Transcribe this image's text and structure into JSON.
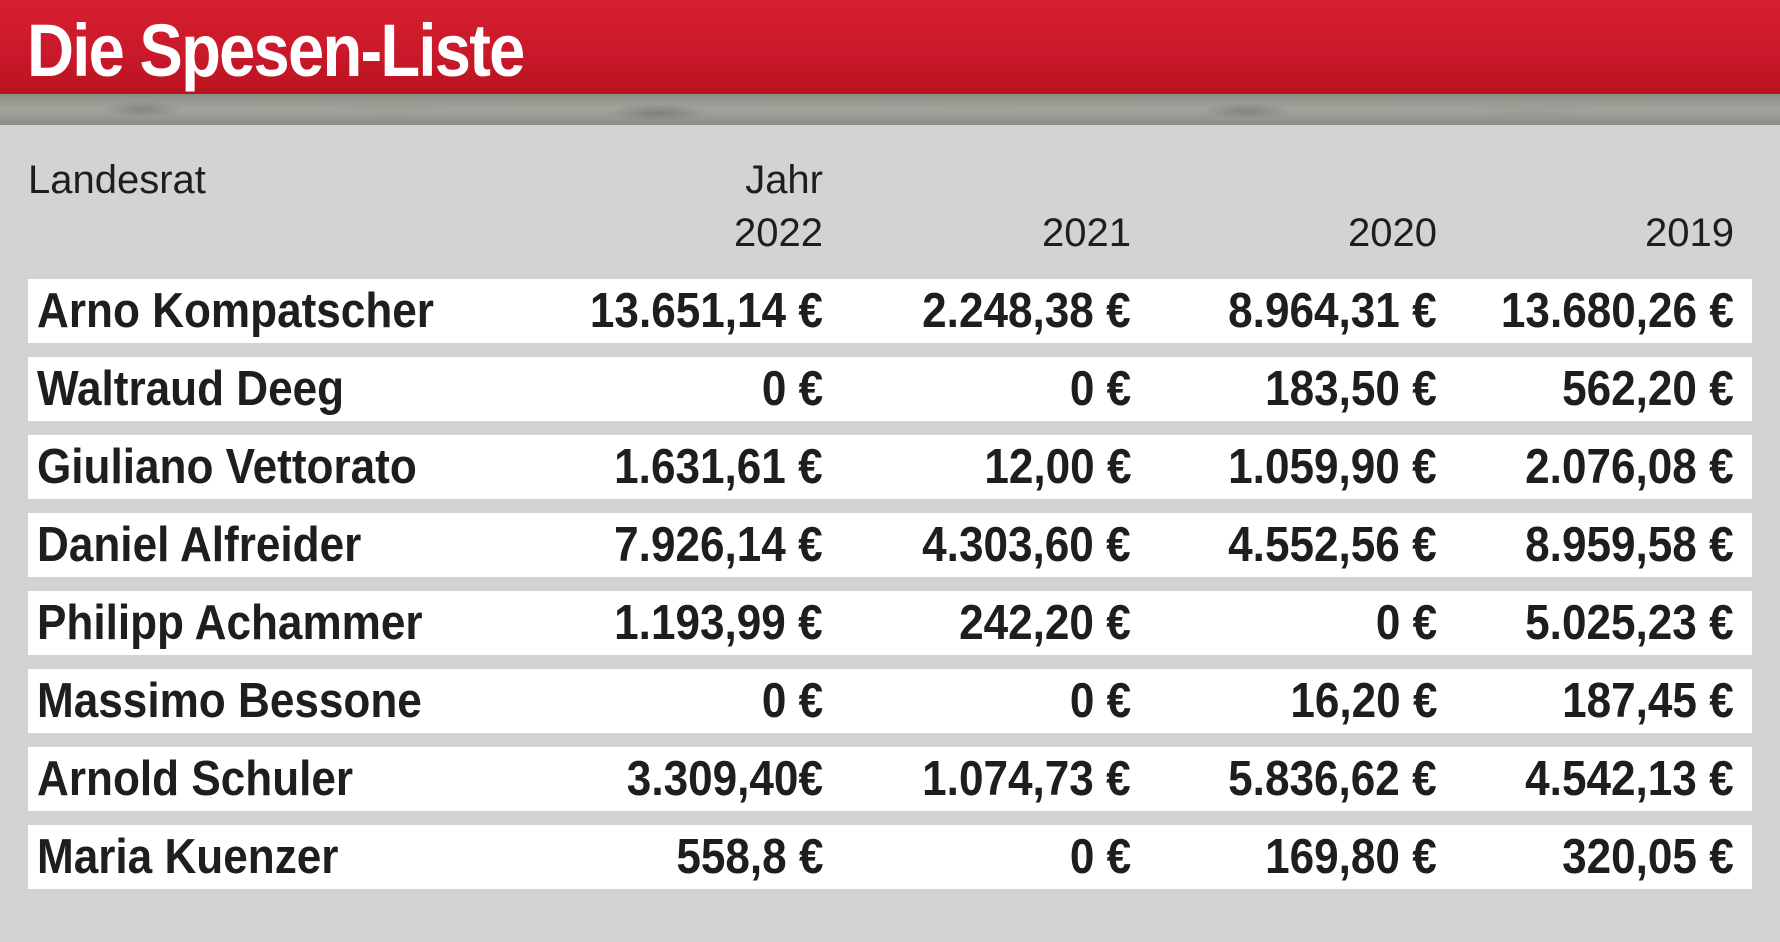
{
  "chart_data": {
    "type": "table",
    "title": "Die Spesen-Liste",
    "header": {
      "name_label": "Landesrat",
      "year_label": "Jahr"
    },
    "columns": [
      "2022",
      "2021",
      "2020",
      "2019"
    ],
    "rows": [
      {
        "name": "Arno Kompatscher",
        "values": [
          "13.651,14 €",
          "2.248,38 €",
          "8.964,31 €",
          "13.680,26 €"
        ]
      },
      {
        "name": "Waltraud Deeg",
        "values": [
          "0 €",
          "0 €",
          "183,50 €",
          "562,20 €"
        ]
      },
      {
        "name": "Giuliano Vettorato",
        "values": [
          "1.631,61 €",
          "12,00 €",
          "1.059,90 €",
          "2.076,08 €"
        ]
      },
      {
        "name": "Daniel Alfreider",
        "values": [
          "7.926,14 €",
          "4.303,60 €",
          "4.552,56 €",
          "8.959,58 €"
        ]
      },
      {
        "name": "Philipp Achammer",
        "values": [
          "1.193,99 €",
          "242,20 €",
          "0 €",
          "5.025,23 €"
        ]
      },
      {
        "name": "Massimo Bessone",
        "values": [
          "0 €",
          "0 €",
          "16,20 €",
          "187,45 €"
        ]
      },
      {
        "name": "Arnold Schuler",
        "values": [
          "3.309,40€",
          "1.074,73 €",
          "5.836,62 €",
          "4.542,13 €"
        ]
      },
      {
        "name": "Maria Kuenzer",
        "values": [
          "558,8 €",
          "0 €",
          "169,80 €",
          "320,05 €"
        ]
      }
    ]
  }
}
